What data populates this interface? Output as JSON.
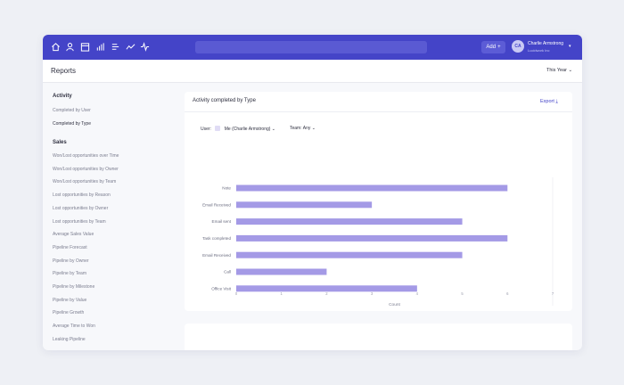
{
  "header": {
    "nav_icons": [
      "home-icon",
      "person-icon",
      "calendar-icon",
      "bar-chart-icon",
      "list-icon",
      "trend-icon",
      "pulse-icon"
    ],
    "search_placeholder": "",
    "add_label": "Add",
    "add_symbol": "+",
    "user": {
      "initials": "CA",
      "name": "Charlie Armstrong",
      "company": "Lucidwork Inc"
    },
    "brand_color": "#4444c8"
  },
  "subheader": {
    "title": "Reports",
    "period": "This Year ⌄"
  },
  "sidebar": {
    "activity_heading": "Activity",
    "activity_items": [
      {
        "label": "Completed by User",
        "active": false
      },
      {
        "label": "Completed by Type",
        "active": true
      }
    ],
    "sales_heading": "Sales",
    "sales_items": [
      "Won/Lost opportunities over Time",
      "Won/Lost opportunities by Owner",
      "Won/Lost opportunities by Team",
      "Lost opportunities by Reason",
      "Lost opportunities by Owner",
      "Lost opportunities by Team",
      "Average Sales Value",
      "Pipeline Forecast",
      "Pipeline by Owner",
      "Pipeline by Team",
      "Pipeline by Milestone",
      "Pipeline by Value",
      "Pipeline Growth",
      "Average Time to Won",
      "Leaking Pipeline"
    ]
  },
  "card": {
    "title": "Activity completed by Type",
    "export_label": "Export ⤓",
    "filters": {
      "user_label": "User:",
      "user_value": "Me (Charlie Armstrong) ⌄",
      "team_label": "Team:",
      "team_value": "Any ⌄"
    }
  },
  "chart_data": {
    "type": "bar",
    "orientation": "horizontal",
    "categories": [
      "Note",
      "Email Received",
      "Email sent",
      "Task completed",
      "Email Received",
      "Call",
      "Office Visit"
    ],
    "values": [
      6,
      3,
      5,
      6,
      5,
      2,
      4
    ],
    "xlim": [
      0,
      7
    ],
    "x_ticks": [
      "0",
      "1",
      "2",
      "3",
      "4",
      "5",
      "6",
      "7"
    ],
    "xlabel": "Count",
    "ylabel": "",
    "bar_color": "#a49ae6",
    "grid": false
  }
}
